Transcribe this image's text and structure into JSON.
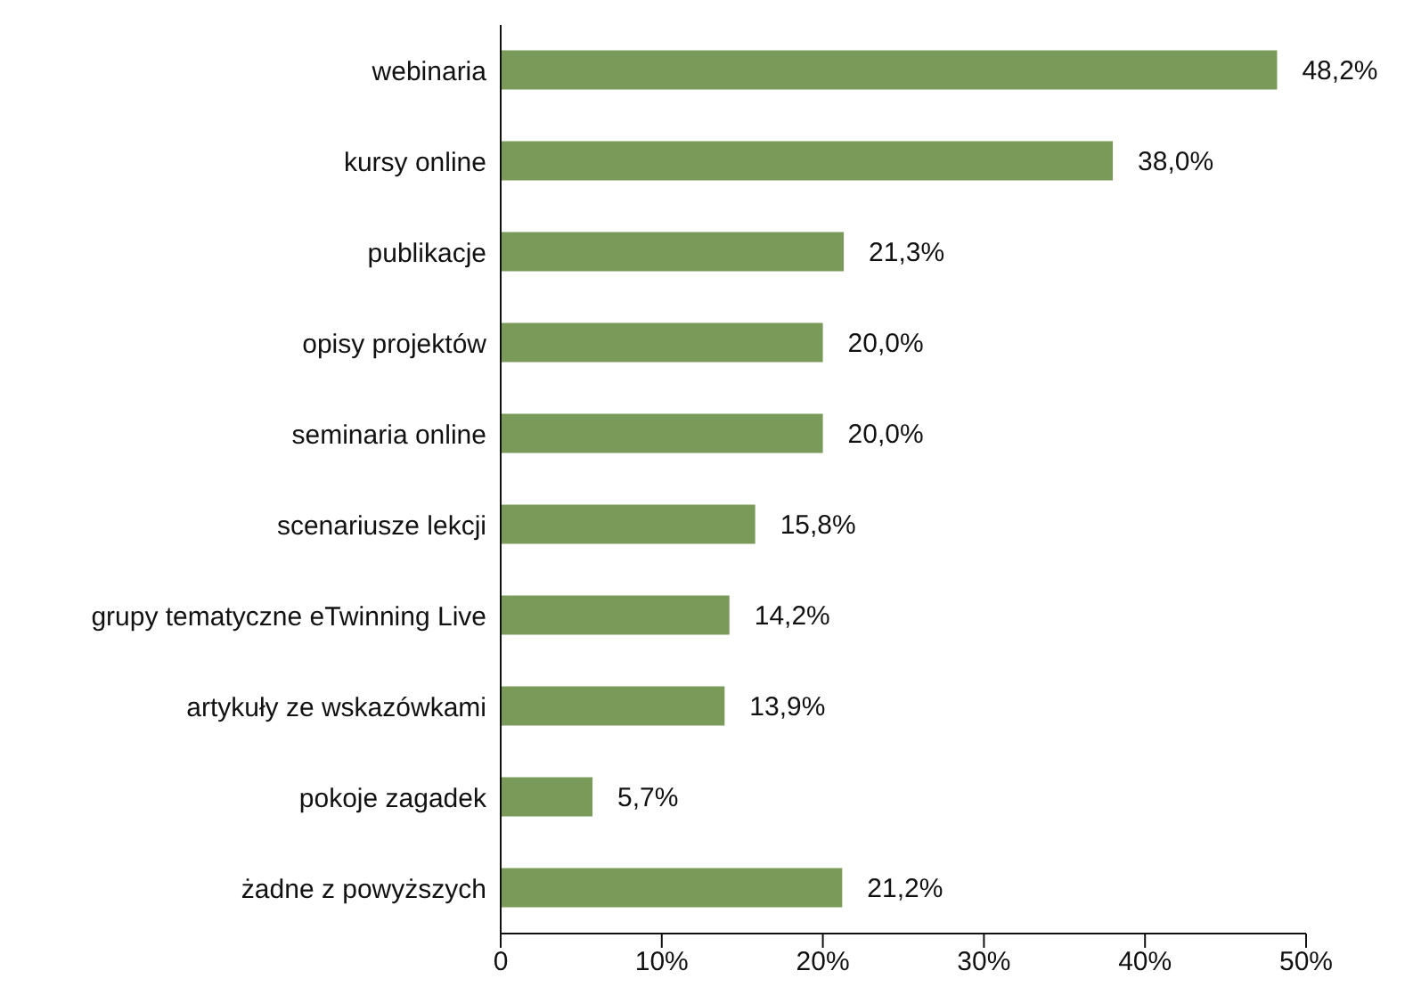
{
  "chart_data": {
    "type": "bar",
    "orientation": "horizontal",
    "categories": [
      "webinaria",
      "kursy online",
      "publikacje",
      "opisy projektów",
      "seminaria online",
      "scenariusze lekcji",
      "grupy tematyczne eTwinning Live",
      "artykuły ze wskazówkami",
      "pokoje zagadek",
      "żadne z powyższych"
    ],
    "values": [
      48.2,
      38.0,
      21.3,
      20.0,
      20.0,
      15.8,
      14.2,
      13.9,
      5.7,
      21.2
    ],
    "value_labels": [
      "48,2%",
      "38,0%",
      "21,3%",
      "20,0%",
      "20,0%",
      "15,8%",
      "14,2%",
      "13,9%",
      "5,7%",
      "21,2%"
    ],
    "color": "#7a9a5a",
    "xlim": [
      0,
      50
    ],
    "xticks": [
      {
        "value": 0,
        "label": "0"
      },
      {
        "value": 10,
        "label": "10%"
      },
      {
        "value": 20,
        "label": "20%"
      },
      {
        "value": 30,
        "label": "30%"
      },
      {
        "value": 40,
        "label": "40%"
      },
      {
        "value": 50,
        "label": "50%"
      }
    ],
    "grid": false,
    "legend": false
  }
}
